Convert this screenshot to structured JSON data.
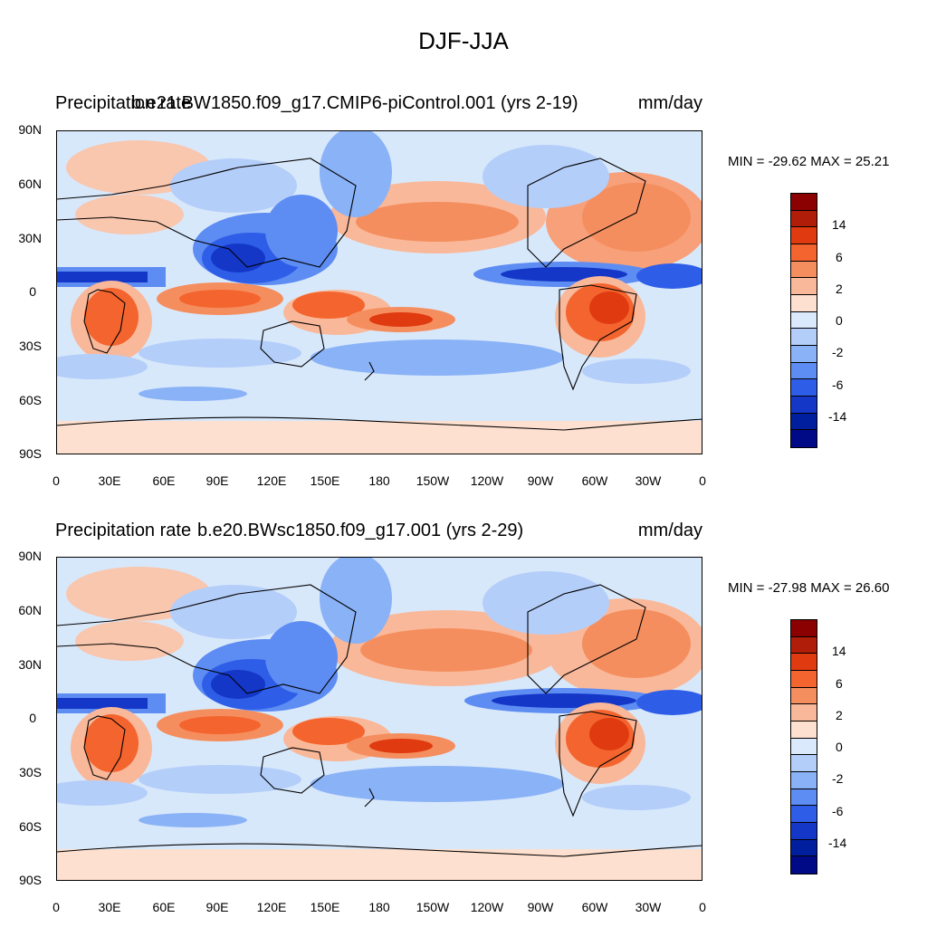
{
  "title": "DJF-JJA",
  "panels": [
    {
      "left": "Precipitation rate",
      "center": "b.e21.BW1850.f09_g17.CMIP6-piControl.001 (yrs 2-19)",
      "right": "mm/day",
      "minmax": "MIN = -29.62 MAX =  25.21"
    },
    {
      "left": "Precipitation rate",
      "center": "b.e20.BWsc1850.f09_g17.001 (yrs 2-29)",
      "right": "mm/day",
      "minmax": "MIN = -27.98 MAX =  26.60"
    }
  ],
  "lat_labels": [
    "90N",
    "60N",
    "30N",
    "0",
    "30S",
    "60S",
    "90S"
  ],
  "lon_labels": [
    "0",
    "30E",
    "60E",
    "90E",
    "120E",
    "150E",
    "180",
    "150W",
    "120W",
    "90W",
    "60W",
    "30W",
    "0"
  ],
  "colorbar": {
    "labels": [
      "14",
      "6",
      "2",
      "0",
      "-2",
      "-6",
      "-14"
    ],
    "colors": [
      "#8b0000",
      "#b01e0a",
      "#e03a10",
      "#f4642e",
      "#f58e5e",
      "#f9b899",
      "#fde0cf",
      "#dae9fb",
      "#b4cefa",
      "#8ab2f7",
      "#5d8cf2",
      "#2e5ee8",
      "#1437c8",
      "#001f9e",
      "#000a86"
    ]
  }
}
